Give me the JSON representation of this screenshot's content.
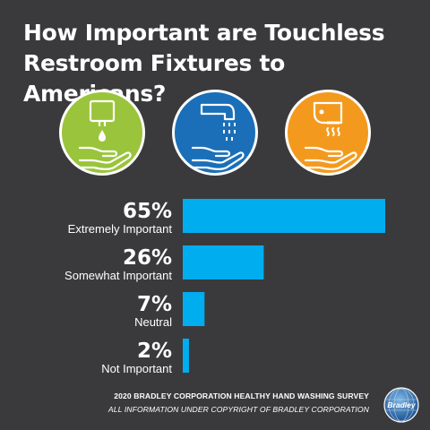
{
  "title": "How Important are Touchless Restroom Fixtures to Americans?",
  "icons": [
    {
      "name": "soap-dispenser-icon",
      "color": "#9ac43b"
    },
    {
      "name": "faucet-icon",
      "color": "#1a6fb8"
    },
    {
      "name": "hand-dryer-icon",
      "color": "#f39a1e"
    }
  ],
  "chart_data": {
    "type": "bar",
    "orientation": "horizontal",
    "categories": [
      "Extremely Important",
      "Somewhat Important",
      "Neutral",
      "Not Important"
    ],
    "values": [
      65,
      26,
      7,
      2
    ],
    "value_labels": [
      "65%",
      "26%",
      "7%",
      "2%"
    ],
    "xlim": [
      0,
      65
    ],
    "grid": false,
    "bar_color": "#00adef",
    "title": "How Important are Touchless Restroom Fixtures to Americans?"
  },
  "footer": {
    "line1": "2020 BRADLEY CORPORATION HEALTHY HAND WASHING SURVEY",
    "line2": "ALL INFORMATION UNDER COPYRIGHT OF BRADLEY CORPORATION"
  },
  "logo": {
    "text": "Bradley"
  }
}
